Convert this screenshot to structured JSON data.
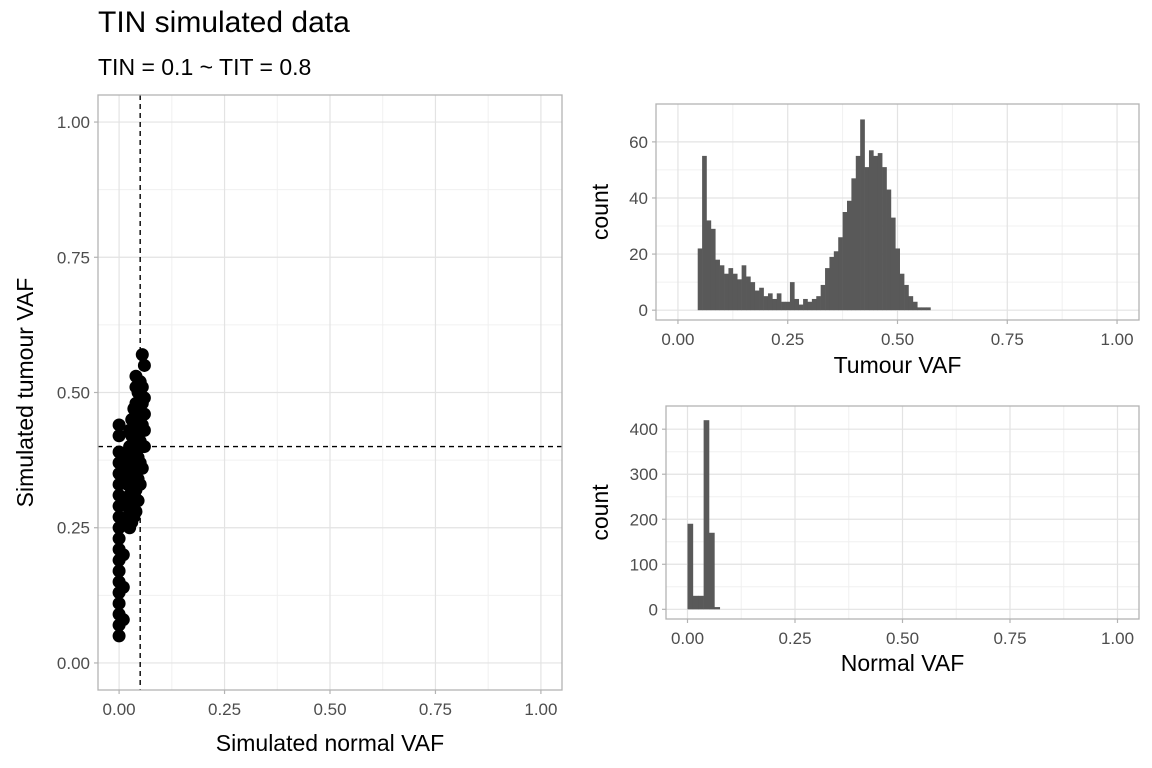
{
  "title": "TIN simulated data",
  "subtitle": "TIN = 0.1 ~ TIT = 0.8",
  "chart_data": [
    {
      "id": "scatter",
      "type": "scatter",
      "xlabel": "Simulated normal VAF",
      "ylabel": "Simulated tumour VAF",
      "xlim": [
        0,
        1
      ],
      "ylim": [
        0,
        1
      ],
      "xticks": [
        0,
        0.25,
        0.5,
        0.75,
        1
      ],
      "xtick_labels": [
        "0.00",
        "0.25",
        "0.50",
        "0.75",
        "1.00"
      ],
      "yticks": [
        0,
        0.25,
        0.5,
        0.75,
        1
      ],
      "ytick_labels": [
        "0.00",
        "0.25",
        "0.50",
        "0.75",
        "1.00"
      ],
      "grid": true,
      "reference_lines": {
        "vline_x": 0.05,
        "hline_y": 0.4,
        "style": "dashed"
      },
      "point_color": "#000000",
      "points": [
        [
          0,
          0.05
        ],
        [
          0,
          0.07
        ],
        [
          0,
          0.09
        ],
        [
          0,
          0.11
        ],
        [
          0,
          0.13
        ],
        [
          0,
          0.15
        ],
        [
          0,
          0.17
        ],
        [
          0,
          0.19
        ],
        [
          0,
          0.21
        ],
        [
          0,
          0.23
        ],
        [
          0,
          0.25
        ],
        [
          0,
          0.27
        ],
        [
          0,
          0.29
        ],
        [
          0,
          0.31
        ],
        [
          0,
          0.33
        ],
        [
          0,
          0.35
        ],
        [
          0,
          0.37
        ],
        [
          0,
          0.39
        ],
        [
          0,
          0.42
        ],
        [
          0,
          0.44
        ],
        [
          0.01,
          0.08
        ],
        [
          0.01,
          0.14
        ],
        [
          0.01,
          0.2
        ],
        [
          0.01,
          0.26
        ],
        [
          0.01,
          0.3
        ],
        [
          0.01,
          0.34
        ],
        [
          0.01,
          0.38
        ],
        [
          0.02,
          0.26
        ],
        [
          0.02,
          0.3
        ],
        [
          0.02,
          0.33
        ],
        [
          0.02,
          0.36
        ],
        [
          0.02,
          0.39
        ],
        [
          0.025,
          0.25
        ],
        [
          0.025,
          0.28
        ],
        [
          0.025,
          0.31
        ],
        [
          0.025,
          0.34
        ],
        [
          0.025,
          0.37
        ],
        [
          0.025,
          0.4
        ],
        [
          0.025,
          0.43
        ],
        [
          0.03,
          0.26
        ],
        [
          0.03,
          0.3
        ],
        [
          0.03,
          0.34
        ],
        [
          0.03,
          0.38
        ],
        [
          0.03,
          0.42
        ],
        [
          0.03,
          0.45
        ],
        [
          0.035,
          0.27
        ],
        [
          0.035,
          0.31
        ],
        [
          0.035,
          0.35
        ],
        [
          0.035,
          0.39
        ],
        [
          0.035,
          0.43
        ],
        [
          0.035,
          0.47
        ],
        [
          0.04,
          0.28
        ],
        [
          0.04,
          0.32
        ],
        [
          0.04,
          0.36
        ],
        [
          0.04,
          0.4
        ],
        [
          0.04,
          0.44
        ],
        [
          0.04,
          0.48
        ],
        [
          0.04,
          0.51
        ],
        [
          0.04,
          0.53
        ],
        [
          0.045,
          0.3
        ],
        [
          0.045,
          0.34
        ],
        [
          0.045,
          0.38
        ],
        [
          0.045,
          0.42
        ],
        [
          0.045,
          0.46
        ],
        [
          0.045,
          0.5
        ],
        [
          0.05,
          0.33
        ],
        [
          0.05,
          0.37
        ],
        [
          0.05,
          0.41
        ],
        [
          0.05,
          0.45
        ],
        [
          0.05,
          0.49
        ],
        [
          0.05,
          0.52
        ],
        [
          0.055,
          0.36
        ],
        [
          0.055,
          0.4
        ],
        [
          0.055,
          0.44
        ],
        [
          0.055,
          0.48
        ],
        [
          0.055,
          0.51
        ],
        [
          0.055,
          0.57
        ],
        [
          0.06,
          0.4
        ],
        [
          0.06,
          0.43
        ],
        [
          0.06,
          0.46
        ],
        [
          0.06,
          0.49
        ],
        [
          0.06,
          0.55
        ]
      ]
    },
    {
      "id": "tumour-hist",
      "type": "bar",
      "xlabel": "Tumour VAF",
      "ylabel": "count",
      "xlim": [
        0,
        1
      ],
      "ylim": [
        0,
        70
      ],
      "xticks": [
        0,
        0.25,
        0.5,
        0.75,
        1
      ],
      "xtick_labels": [
        "0.00",
        "0.25",
        "0.50",
        "0.75",
        "1.00"
      ],
      "yticks": [
        0,
        20,
        40,
        60
      ],
      "ytick_labels": [
        "0",
        "20",
        "40",
        "60"
      ],
      "grid": true,
      "bar_color": "#595959",
      "bin_start": 0.045,
      "bin_width": 0.01,
      "values": [
        22,
        55,
        32,
        29,
        18,
        16,
        13,
        15,
        13,
        11,
        16,
        12,
        10,
        7,
        8,
        5,
        6,
        4,
        6,
        3,
        3,
        10,
        4,
        2,
        4,
        3,
        4,
        5,
        9,
        15,
        19,
        21,
        26,
        35,
        39,
        47,
        55,
        68,
        51,
        57,
        55,
        56,
        51,
        43,
        33,
        22,
        13,
        9,
        5,
        3,
        1,
        1,
        1
      ]
    },
    {
      "id": "normal-hist",
      "type": "bar",
      "xlabel": "Normal VAF",
      "ylabel": "count",
      "xlim": [
        0,
        1
      ],
      "ylim": [
        0,
        430
      ],
      "xticks": [
        0,
        0.25,
        0.5,
        0.75,
        1
      ],
      "xtick_labels": [
        "0.00",
        "0.25",
        "0.50",
        "0.75",
        "1.00"
      ],
      "yticks": [
        0,
        100,
        200,
        300,
        400
      ],
      "ytick_labels": [
        "0",
        "100",
        "200",
        "300",
        "400"
      ],
      "grid": true,
      "bar_color": "#595959",
      "bin_start": 0,
      "bin_width": 0.0125,
      "values": [
        190,
        30,
        30,
        420,
        170,
        5
      ]
    }
  ]
}
